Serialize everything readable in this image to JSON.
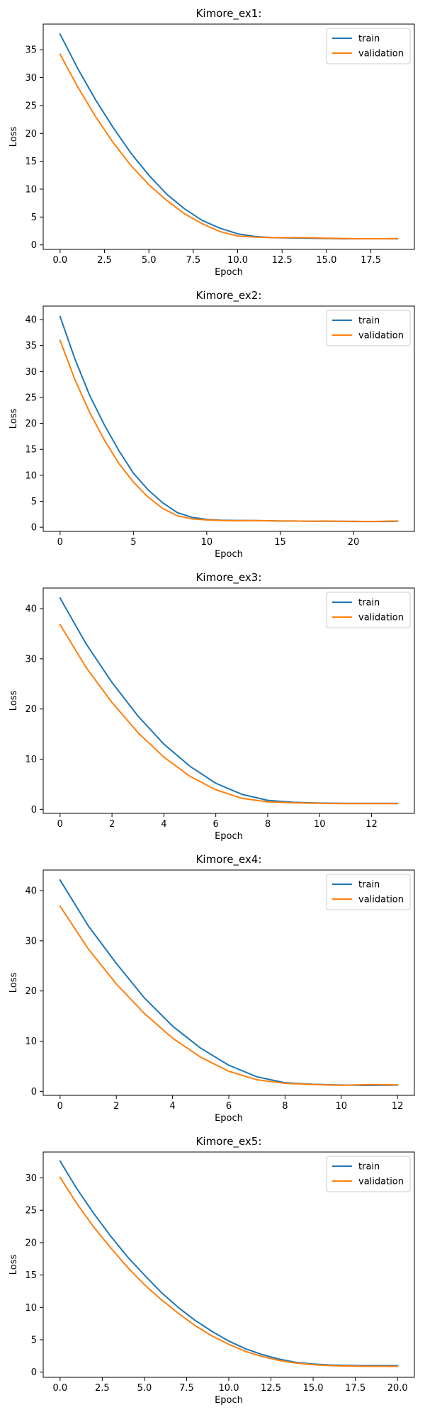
{
  "colors": {
    "train": "#1f77b4",
    "validation": "#ff7f0e"
  },
  "chart_data": [
    {
      "type": "line",
      "title": "Kimore_ex1:",
      "xlabel": "Epoch",
      "ylabel": "Loss",
      "xlim": [
        -0.95,
        19.95
      ],
      "ylim": [
        -0.8,
        39.6
      ],
      "xticks": [
        0.0,
        2.5,
        5.0,
        7.5,
        10.0,
        12.5,
        15.0,
        17.5
      ],
      "xtick_labels": [
        "0.0",
        "2.5",
        "5.0",
        "7.5",
        "10.0",
        "12.5",
        "15.0",
        "17.5"
      ],
      "yticks": [
        0,
        5,
        10,
        15,
        20,
        25,
        30,
        35
      ],
      "ytick_labels": [
        "0",
        "5",
        "10",
        "15",
        "20",
        "25",
        "30",
        "35"
      ],
      "legend": {
        "loc": "upper right",
        "entries": [
          "train",
          "validation"
        ]
      },
      "x": [
        0,
        1,
        2,
        3,
        4,
        5,
        6,
        7,
        8,
        9,
        10,
        11,
        12,
        13,
        14,
        15,
        16,
        17,
        18,
        19
      ],
      "series": [
        {
          "name": "train",
          "values": [
            37.8,
            31.6,
            26.0,
            21.0,
            16.4,
            12.5,
            9.1,
            6.5,
            4.4,
            3.0,
            2.0,
            1.5,
            1.3,
            1.25,
            1.2,
            1.15,
            1.1,
            1.1,
            1.1,
            1.1
          ]
        },
        {
          "name": "validation",
          "values": [
            34.2,
            28.3,
            23.0,
            18.3,
            14.2,
            10.8,
            8.0,
            5.6,
            3.8,
            2.4,
            1.6,
            1.4,
            1.3,
            1.3,
            1.3,
            1.2,
            1.15,
            1.1,
            1.1,
            1.15
          ]
        }
      ]
    },
    {
      "type": "line",
      "title": "Kimore_ex2:",
      "xlabel": "Epoch",
      "ylabel": "Loss",
      "xlim": [
        -1.15,
        24.15
      ],
      "ylim": [
        -0.8,
        42.6
      ],
      "xticks": [
        0,
        5,
        10,
        15,
        20
      ],
      "xtick_labels": [
        "0",
        "5",
        "10",
        "15",
        "20"
      ],
      "yticks": [
        0,
        5,
        10,
        15,
        20,
        25,
        30,
        35,
        40
      ],
      "ytick_labels": [
        "0",
        "5",
        "10",
        "15",
        "20",
        "25",
        "30",
        "35",
        "40"
      ],
      "legend": {
        "loc": "upper right",
        "entries": [
          "train",
          "validation"
        ]
      },
      "x": [
        0,
        1,
        2,
        3,
        4,
        5,
        6,
        7,
        8,
        9,
        10,
        11,
        12,
        13,
        14,
        15,
        16,
        17,
        18,
        19,
        20,
        21,
        22,
        23
      ],
      "series": [
        {
          "name": "train",
          "values": [
            40.6,
            32.5,
            25.5,
            19.8,
            14.8,
            10.4,
            7.2,
            4.7,
            2.8,
            1.9,
            1.5,
            1.35,
            1.3,
            1.3,
            1.25,
            1.2,
            1.2,
            1.15,
            1.15,
            1.15,
            1.1,
            1.1,
            1.1,
            1.15
          ]
        },
        {
          "name": "validation",
          "values": [
            36.0,
            28.5,
            22.2,
            16.9,
            12.3,
            8.7,
            5.8,
            3.6,
            2.2,
            1.6,
            1.4,
            1.3,
            1.25,
            1.3,
            1.25,
            1.2,
            1.2,
            1.15,
            1.2,
            1.15,
            1.15,
            1.1,
            1.15,
            1.2
          ]
        }
      ]
    },
    {
      "type": "line",
      "title": "Kimore_ex3:",
      "xlabel": "Epoch",
      "ylabel": "Loss",
      "xlim": [
        -0.65,
        13.65
      ],
      "ylim": [
        -0.8,
        44.1
      ],
      "xticks": [
        0,
        2,
        4,
        6,
        8,
        10,
        12
      ],
      "xtick_labels": [
        "0",
        "2",
        "4",
        "6",
        "8",
        "10",
        "12"
      ],
      "yticks": [
        0,
        10,
        20,
        30,
        40
      ],
      "ytick_labels": [
        "0",
        "10",
        "20",
        "30",
        "40"
      ],
      "legend": {
        "loc": "upper right",
        "entries": [
          "train",
          "validation"
        ]
      },
      "x": [
        0,
        1,
        2,
        3,
        4,
        5,
        6,
        7,
        8,
        9,
        10,
        11,
        12,
        13
      ],
      "series": [
        {
          "name": "train",
          "values": [
            42.1,
            33.0,
            25.3,
            18.6,
            13.0,
            8.6,
            5.2,
            3.0,
            1.8,
            1.4,
            1.25,
            1.2,
            1.2,
            1.2
          ]
        },
        {
          "name": "validation",
          "values": [
            36.8,
            28.3,
            21.3,
            15.3,
            10.4,
            6.6,
            3.9,
            2.2,
            1.5,
            1.3,
            1.2,
            1.15,
            1.15,
            1.15
          ]
        }
      ]
    },
    {
      "type": "line",
      "title": "Kimore_ex4:",
      "xlabel": "Epoch",
      "ylabel": "Loss",
      "xlim": [
        -0.6,
        12.6
      ],
      "ylim": [
        -0.8,
        44.1
      ],
      "xticks": [
        0,
        2,
        4,
        6,
        8,
        10,
        12
      ],
      "xtick_labels": [
        "0",
        "2",
        "4",
        "6",
        "8",
        "10",
        "12"
      ],
      "yticks": [
        0,
        10,
        20,
        30,
        40
      ],
      "ytick_labels": [
        "0",
        "10",
        "20",
        "30",
        "40"
      ],
      "legend": {
        "loc": "upper right",
        "entries": [
          "train",
          "validation"
        ]
      },
      "x": [
        0,
        1,
        2,
        3,
        4,
        5,
        6,
        7,
        8,
        9,
        10,
        11,
        12
      ],
      "series": [
        {
          "name": "train",
          "values": [
            42.1,
            33.0,
            25.5,
            18.6,
            13.0,
            8.6,
            5.2,
            2.9,
            1.7,
            1.4,
            1.25,
            1.2,
            1.25
          ]
        },
        {
          "name": "validation",
          "values": [
            36.9,
            28.4,
            21.4,
            15.5,
            10.6,
            6.8,
            4.0,
            2.3,
            1.6,
            1.35,
            1.2,
            1.35,
            1.3
          ]
        }
      ]
    },
    {
      "type": "line",
      "title": "Kimore_ex5:",
      "xlabel": "Epoch",
      "ylabel": "Loss",
      "xlim": [
        -1.0,
        21.0
      ],
      "ylim": [
        -0.8,
        34.0
      ],
      "xticks": [
        0.0,
        2.5,
        5.0,
        7.5,
        10.0,
        12.5,
        15.0,
        17.5,
        20.0
      ],
      "xtick_labels": [
        "0.0",
        "2.5",
        "5.0",
        "7.5",
        "10.0",
        "12.5",
        "15.0",
        "17.5",
        "20.0"
      ],
      "yticks": [
        0,
        5,
        10,
        15,
        20,
        25,
        30
      ],
      "ytick_labels": [
        "0",
        "5",
        "10",
        "15",
        "20",
        "25",
        "30"
      ],
      "legend": {
        "loc": "upper right",
        "entries": [
          "train",
          "validation"
        ]
      },
      "x": [
        0,
        1,
        2,
        3,
        4,
        5,
        6,
        7,
        8,
        9,
        10,
        11,
        12,
        13,
        14,
        15,
        16,
        17,
        18,
        19,
        20
      ],
      "series": [
        {
          "name": "train",
          "values": [
            32.6,
            28.3,
            24.5,
            21.0,
            17.8,
            15.0,
            12.3,
            10.0,
            8.0,
            6.3,
            4.8,
            3.6,
            2.7,
            2.0,
            1.5,
            1.25,
            1.1,
            1.05,
            1.0,
            1.0,
            1.0
          ]
        },
        {
          "name": "validation",
          "values": [
            30.1,
            26.0,
            22.4,
            19.2,
            16.2,
            13.5,
            11.2,
            9.1,
            7.2,
            5.6,
            4.3,
            3.2,
            2.4,
            1.8,
            1.4,
            1.15,
            1.0,
            0.95,
            0.9,
            0.9,
            0.9
          ]
        }
      ]
    }
  ]
}
